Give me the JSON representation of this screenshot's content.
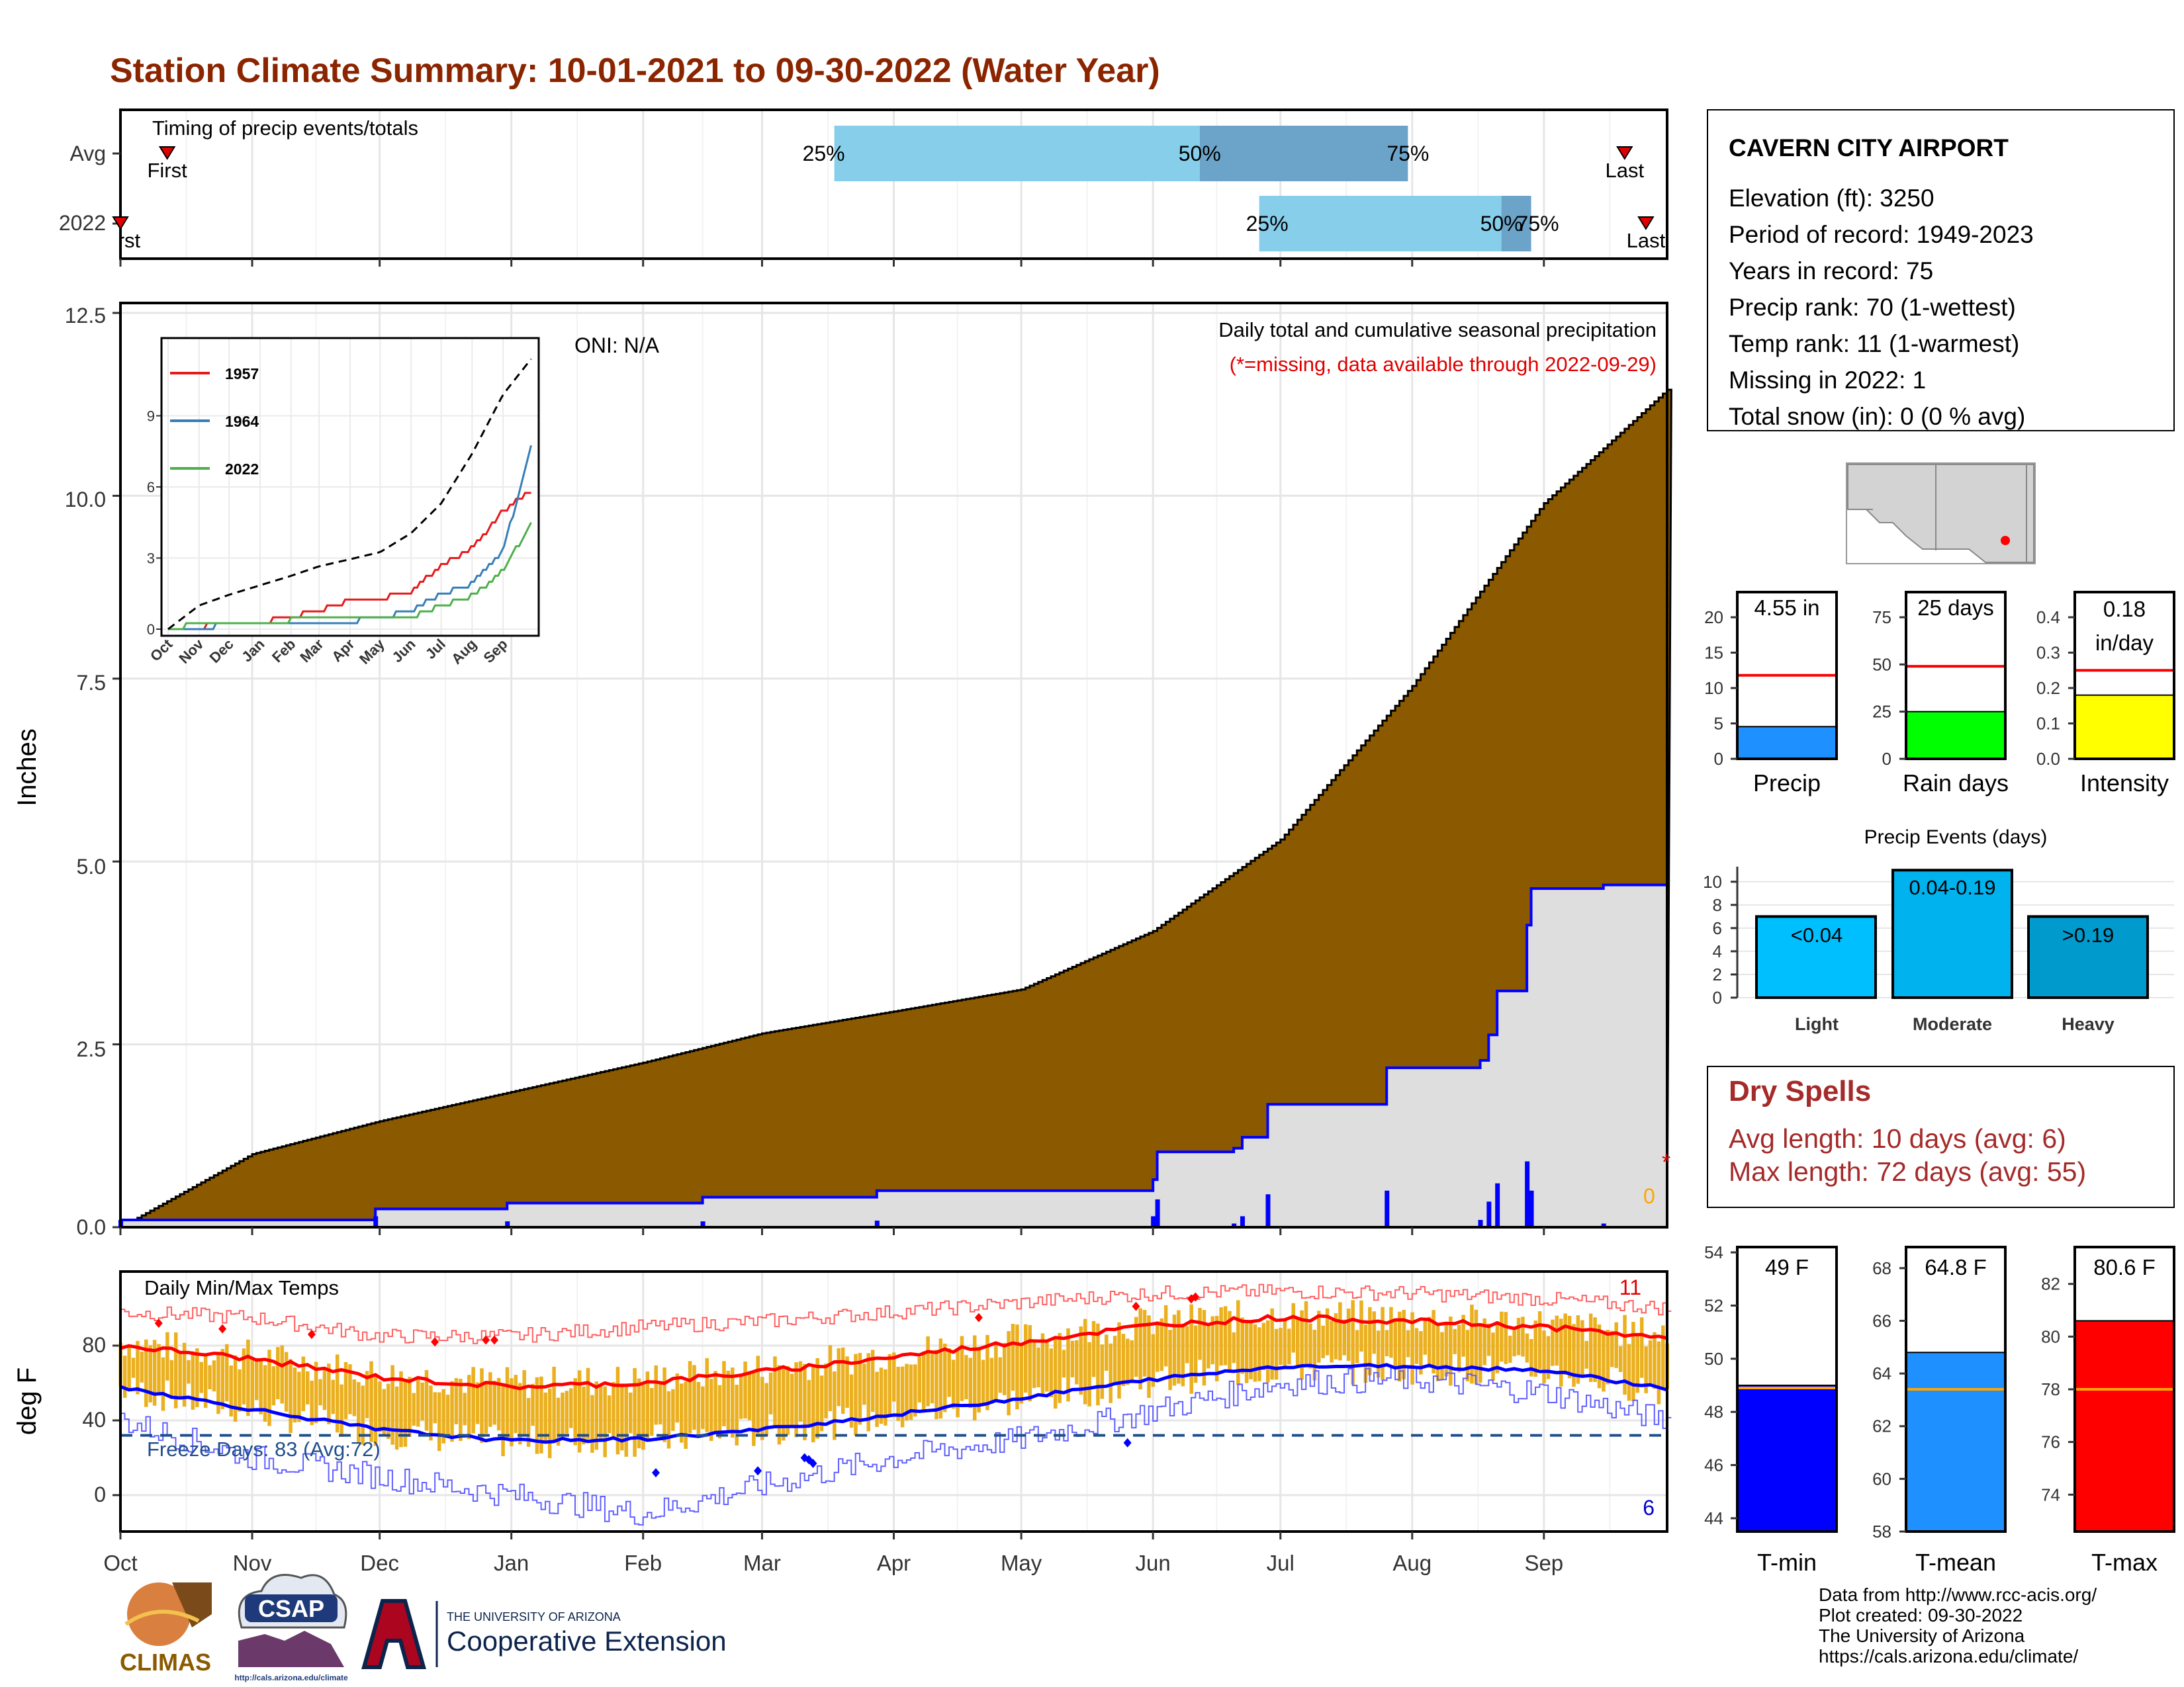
{
  "title": "Station Climate Summary: 10-01-2021 to 09-30-2022 (Water Year)",
  "colors": {
    "title": "#8B2500",
    "cum_avg_fill": "#8B5A00",
    "cum_year_fill": "#DEDEDE",
    "cum_year_line": "#0000FF",
    "daily_precip_bar": "#0000FF",
    "timing_light": "#87CEEB",
    "timing_dark": "#6BA3C9",
    "temp_range_bar": "#EBB020",
    "tmax_line": "#FF0000",
    "tmin_line": "#0000FF",
    "freeze_line": "#1F4E8C",
    "dry_spell_text": "#A52A2A",
    "bar_precip": "#1E90FF",
    "bar_raindays": "#00FF00",
    "bar_intensity": "#FFFF00",
    "bar_tmin": "#0000FF",
    "bar_tmean": "#1E90FF",
    "bar_tmax": "#FF0000",
    "event_light": "#00BFFF",
    "event_moderate": "#00B2EE",
    "event_heavy": "#009ACD"
  },
  "timing": {
    "label": "Timing of precip events/totals",
    "rows": [
      "Avg",
      "2022"
    ],
    "first_label": "First",
    "last_label": "Last",
    "avg": {
      "first": "Oct 12",
      "last": "Sep 20",
      "p25": "Mar 18",
      "p50": "Jun 12",
      "p75": "Jul 31"
    },
    "y2022": {
      "first": "Oct 1",
      "last": "Sep 25",
      "p25": "Jun 26",
      "p50": "Aug 22",
      "p75": "Aug 29"
    },
    "pct_labels": [
      "25%",
      "50%",
      "75%"
    ]
  },
  "precip_panel": {
    "ylabel": "Inches",
    "yticks": [
      "0.0",
      "2.5",
      "5.0",
      "7.5",
      "10.0",
      "12.5"
    ],
    "ylim": [
      0,
      12.5
    ],
    "note1": "Daily total and cumulative seasonal precipitation",
    "note2": "(*=missing, data available through 2022-09-29)",
    "oni": "ONI: N/A",
    "missing_marker": "*",
    "zero_label": "0"
  },
  "inset": {
    "yticks": [
      "0",
      "3",
      "6",
      "9"
    ],
    "xticks": [
      "Oct",
      "Nov",
      "Dec",
      "Jan",
      "Feb",
      "Mar",
      "Apr",
      "May",
      "Jun",
      "Jul",
      "Aug",
      "Sep"
    ],
    "legend": [
      "1957",
      "1964",
      "2022"
    ]
  },
  "temp_panel": {
    "ylabel": "deg F",
    "title": "Daily Min/Max Temps",
    "yticks": [
      "0",
      "40",
      "80"
    ],
    "freeze": "Freeze Days: 83 (Avg:72)",
    "record_high_count": "11",
    "record_low_count": "6"
  },
  "months": [
    "Oct",
    "Nov",
    "Dec",
    "Jan",
    "Feb",
    "Mar",
    "Apr",
    "May",
    "Jun",
    "Jul",
    "Aug",
    "Sep"
  ],
  "station": {
    "name": "CAVERN CITY AIRPORT",
    "lines": [
      "Elevation (ft): 3250",
      "Period of record: 1949-2023",
      "Years in record: 75",
      "Precip rank: 70 (1-wettest)",
      "Temp rank: 11 (1-warmest)",
      "Missing in 2022: 1",
      "Total snow (in): 0 (0 % avg)"
    ]
  },
  "mini_bars": [
    {
      "label": "Precip",
      "value_text": "4.55 in",
      "yticks": [
        "0",
        "5",
        "10",
        "15",
        "20"
      ]
    },
    {
      "label": "Rain days",
      "value_text": "25 days",
      "yticks": [
        "0",
        "25",
        "50",
        "75"
      ]
    },
    {
      "label": "Intensity",
      "value_text": "0.18",
      "value_text2": "in/day",
      "yticks": [
        "0.0",
        "0.1",
        "0.2",
        "0.3",
        "0.4"
      ]
    }
  ],
  "events": {
    "title": "Precip Events (days)",
    "yticks": [
      "0",
      "2",
      "4",
      "6",
      "8",
      "10"
    ],
    "categories": [
      "Light",
      "Moderate",
      "Heavy"
    ],
    "bar_labels": [
      "<0.04",
      "0.04-0.19",
      ">0.19"
    ]
  },
  "dry": {
    "title": "Dry Spells",
    "avg": "Avg length: 10 days (avg: 6)",
    "max": "Max length: 72 days (avg: 55)"
  },
  "temp_bars": [
    {
      "label": "T-min",
      "value_text": "49 F",
      "yticks": [
        "44",
        "46",
        "48",
        "50",
        "52",
        "54"
      ]
    },
    {
      "label": "T-mean",
      "value_text": "64.8 F",
      "yticks": [
        "58",
        "60",
        "62",
        "64",
        "66",
        "68"
      ]
    },
    {
      "label": "T-max",
      "value_text": "80.6 F",
      "yticks": [
        "74",
        "76",
        "78",
        "80",
        "82"
      ]
    }
  ],
  "footer": [
    "Data from http://www.rcc-acis.org/",
    "Plot created: 09-30-2022",
    "The University of Arizona",
    "https://cals.arizona.edu/climate/"
  ],
  "logos": {
    "climas": "CLIMAS",
    "csap": "CSAP",
    "csap_url": "http://cals.arizona.edu/climate",
    "ua_small": "THE UNIVERSITY OF ARIZONA",
    "ua_big": "Cooperative Extension"
  },
  "chart_data": [
    {
      "type": "area",
      "title": "Daily total and cumulative seasonal precipitation",
      "ylabel": "Inches",
      "ylim": [
        0,
        12.5
      ],
      "x": [
        "Oct",
        "Nov",
        "Dec",
        "Jan",
        "Feb",
        "Mar",
        "Apr",
        "May",
        "Jun",
        "Jul",
        "Aug",
        "Sep",
        "Sep 30"
      ],
      "series": [
        {
          "values": [
            0.0,
            1.0,
            1.45,
            1.85,
            2.25,
            2.65,
            2.95,
            3.25,
            4.05,
            5.3,
            7.4,
            9.9,
            11.45
          ]
        },
        {
          "values": [
            0.1,
            0.15,
            0.15,
            0.3,
            0.38,
            0.38,
            0.47,
            0.47,
            0.47,
            1.0,
            1.4,
            2.45,
            4.55
          ]
        }
      ],
      "daily_precip_events": [
        {
          "date": "Oct 1",
          "value": 0.1
        },
        {
          "date": "Nov 30",
          "value": 0.15
        },
        {
          "date": "Dec 31",
          "value": 0.08
        },
        {
          "date": "Feb 15",
          "value": 0.08
        },
        {
          "date": "Mar 28",
          "value": 0.09
        },
        {
          "date": "Jun 1",
          "value": 0.15
        },
        {
          "date": "Jun 2",
          "value": 0.38
        },
        {
          "date": "Jun 20",
          "value": 0.05
        },
        {
          "date": "Jun 22",
          "value": 0.15
        },
        {
          "date": "Jun 28",
          "value": 0.45
        },
        {
          "date": "Jul 26",
          "value": 0.5
        },
        {
          "date": "Aug 17",
          "value": 0.1
        },
        {
          "date": "Aug 19",
          "value": 0.35
        },
        {
          "date": "Aug 21",
          "value": 0.6
        },
        {
          "date": "Aug 28",
          "value": 0.9
        },
        {
          "date": "Aug 29",
          "value": 0.5
        },
        {
          "date": "Sep 15",
          "value": 0.05
        }
      ]
    },
    {
      "type": "line",
      "ylim": [
        0,
        12
      ],
      "x": [
        "Oct",
        "Nov",
        "Dec",
        "Jan",
        "Feb",
        "Mar",
        "Apr",
        "May",
        "Jun",
        "Jul",
        "Aug",
        "Sep",
        "Sep 30"
      ],
      "series": [
        {
          "name": "1957",
          "values": [
            0,
            0.1,
            0.2,
            0.3,
            0.5,
            0.8,
            1.2,
            1.3,
            1.6,
            2.7,
            3.4,
            5.0,
            5.9
          ]
        },
        {
          "name": "1964",
          "values": [
            0,
            0.1,
            0.15,
            0.2,
            0.25,
            0.3,
            0.35,
            0.45,
            0.8,
            1.5,
            1.9,
            3.3,
            7.8
          ]
        },
        {
          "name": "2022",
          "values": [
            0.1,
            0.15,
            0.15,
            0.3,
            0.38,
            0.38,
            0.47,
            0.47,
            0.47,
            1.0,
            1.4,
            2.45,
            4.55
          ]
        },
        {
          "values": [
            0,
            1.0,
            1.45,
            1.85,
            2.25,
            2.65,
            2.95,
            3.25,
            4.05,
            5.3,
            7.4,
            9.9,
            11.45
          ]
        }
      ]
    },
    {
      "type": "line",
      "title": "Daily Min/Max Temps",
      "ylabel": "deg F",
      "ylim": [
        -20,
        110
      ],
      "x": [
        "Oct",
        "Nov",
        "Dec",
        "Jan",
        "Feb",
        "Mar",
        "Apr",
        "May",
        "Jun",
        "Jul",
        "Aug",
        "Sep",
        "Sep 30"
      ],
      "series": [
        {
          "values": [
            80,
            73,
            63,
            58,
            60,
            66,
            74,
            82,
            91,
            95,
            93,
            90,
            84
          ]
        },
        {
          "values": [
            58,
            46,
            35,
            29,
            30,
            35,
            43,
            52,
            62,
            69,
            69,
            67,
            57
          ]
        },
        {
          "values": [
            98,
            95,
            85,
            85,
            90,
            93,
            98,
            103,
            108,
            109,
            108,
            105,
            100
          ]
        },
        {
          "values": [
            40,
            20,
            10,
            0,
            -10,
            5,
            20,
            30,
            45,
            60,
            62,
            55,
            40
          ]
        }
      ],
      "freeze_threshold": 32
    },
    {
      "type": "bar",
      "title": "Precip Events (days)",
      "categories": [
        "Light",
        "Moderate",
        "Heavy"
      ],
      "values": [
        7,
        11,
        7
      ],
      "ylim": [
        0,
        11
      ]
    },
    {
      "type": "bar",
      "categories": [
        "Precip",
        "Rain days",
        "Intensity"
      ],
      "values": [
        4.55,
        25,
        0.18
      ],
      "averages": [
        11.8,
        49,
        0.25
      ]
    },
    {
      "type": "bar",
      "categories": [
        "T-min",
        "T-mean",
        "T-max"
      ],
      "values": [
        49,
        64.8,
        80.6
      ],
      "averages": [
        48.9,
        63.4,
        78.0
      ]
    }
  ]
}
